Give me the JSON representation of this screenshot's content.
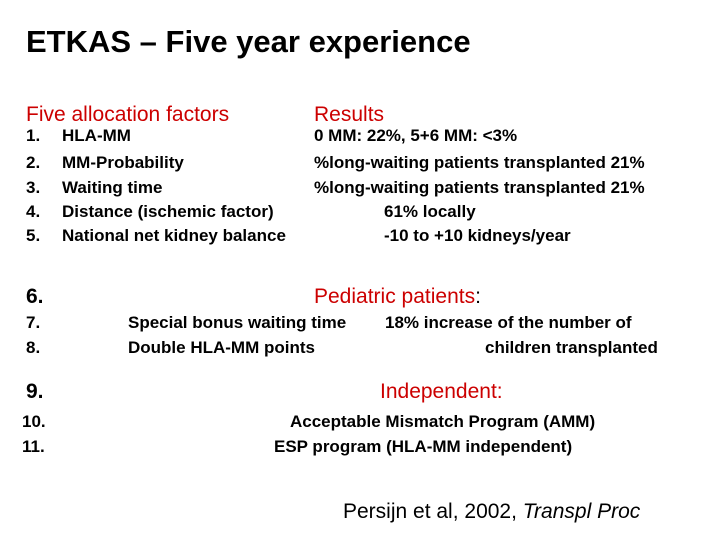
{
  "title": "ETKAS – Five year experience",
  "headers": {
    "factors": "Five allocation factors",
    "results": "Results"
  },
  "factors": [
    {
      "n": "1.",
      "label": "HLA-MM",
      "result": "0 MM: 22%, 5+6 MM: <3%"
    },
    {
      "n": "2.",
      "label": "MM-Probability",
      "result": "%long-waiting patients transplanted 21%"
    },
    {
      "n": "3.",
      "label": "Waiting time",
      "result": "%long-waiting patients transplanted 21%"
    },
    {
      "n": "4.",
      "label": "Distance (ischemic factor)",
      "result": "61% locally"
    },
    {
      "n": "5.",
      "label": "National net kidney balance",
      "result": "-10 to +10 kidneys/year"
    }
  ],
  "pediatric": {
    "n6": "6.",
    "heading": "Pediatric patients",
    "colon": ":",
    "n7": "7.",
    "n8": "8.",
    "item7": "Special bonus waiting time",
    "item8": "Double HLA-MM points",
    "result_line1": "18% increase of the number of",
    "result_line2": "children transplanted"
  },
  "independent": {
    "n9": "9.",
    "heading": "Independent:",
    "n10": "10.",
    "n11": "11.",
    "item10": "Acceptable Mismatch Program (AMM)",
    "item11": "ESP program (HLA-MM independent)"
  },
  "citation": {
    "authors": "Persijn et al, 2002, ",
    "journal": "Transpl Proc"
  }
}
